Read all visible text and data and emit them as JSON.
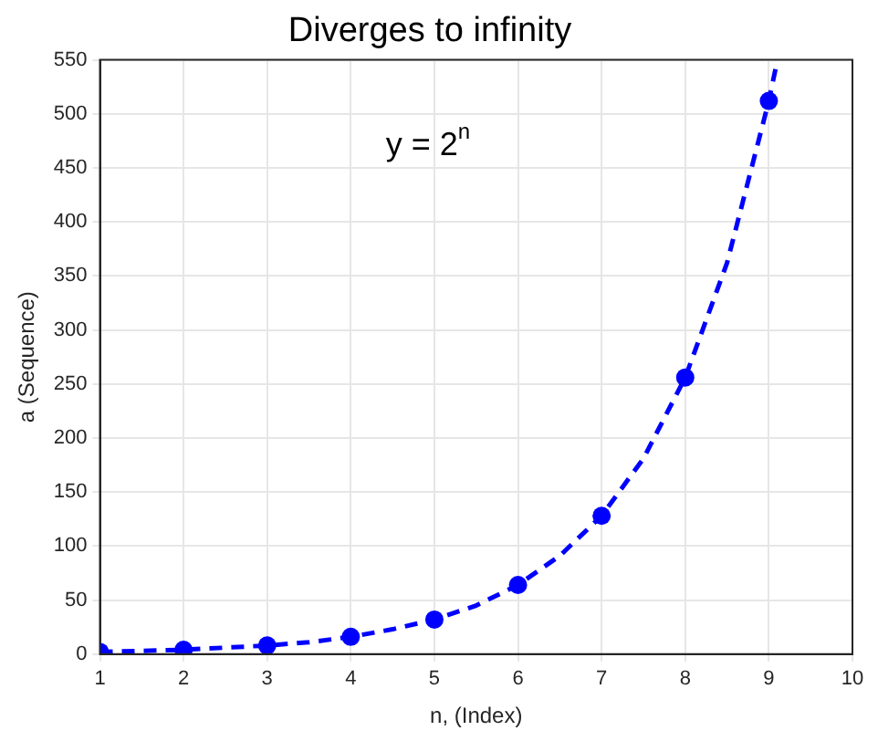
{
  "chart_data": {
    "type": "line",
    "title": "Diverges to infinity",
    "xlabel": "n, (Index)",
    "ylabel": "a (Sequence)",
    "annotations": [
      "y = 2$^{n}$"
    ],
    "xlim": [
      1,
      10
    ],
    "xticks": [
      1,
      2,
      3,
      4,
      5,
      6,
      7,
      8,
      9,
      10
    ],
    "ylim": [
      0,
      550
    ],
    "yticks": [
      0,
      50,
      100,
      150,
      200,
      250,
      300,
      350,
      400,
      450,
      500,
      550
    ],
    "grid": true,
    "legend": false,
    "series": [
      {
        "color": "#0000ff",
        "line_style": "dashed",
        "marker": "none",
        "x": [
          1,
          1.5,
          2,
          2.5,
          3,
          3.5,
          4,
          4.5,
          5,
          5.5,
          6,
          6.5,
          7,
          7.5,
          8,
          8.5,
          9,
          9.1
        ],
        "values": [
          2,
          3,
          4,
          6,
          8,
          11,
          16,
          23,
          32,
          45,
          64,
          91,
          128,
          181,
          256,
          362,
          512,
          549
        ]
      },
      {
        "type": "scatter",
        "color": "#0000ff",
        "marker": "circle",
        "x": [
          1,
          2,
          3,
          4,
          5,
          6,
          7,
          8,
          9
        ],
        "values": [
          2,
          4,
          8,
          16,
          32,
          64,
          128,
          256,
          512
        ]
      }
    ]
  }
}
